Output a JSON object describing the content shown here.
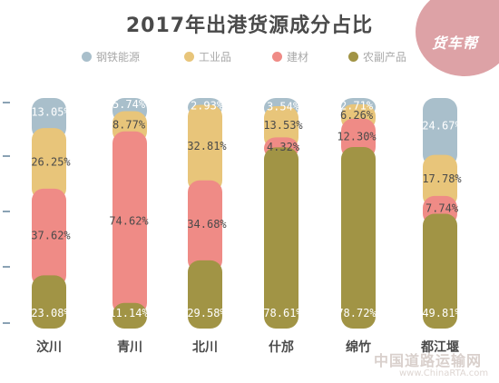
{
  "title": "2017年出港货源成分占比",
  "logo_text": "货车帮",
  "watermark": {
    "text": "中国道路运输网",
    "url": "www.ChinaRTA.com"
  },
  "colors": {
    "steel": "#a9bfcb",
    "industrial": "#e8c57a",
    "building": "#ef8b86",
    "agri": "#a19445",
    "label_light": "#ffffff",
    "label_dark": "#4a4a4a",
    "axis_tick": "#8aa2b4"
  },
  "chart_data": {
    "type": "bar",
    "stacked": true,
    "percent_unit": "%",
    "categories": [
      "汶川",
      "青川",
      "北川",
      "什邡",
      "绵竹",
      "都江堰"
    ],
    "series": [
      {
        "name": "钢铁能源",
        "color": "#a9bfcb",
        "values": [
          13.05,
          5.74,
          2.93,
          3.54,
          2.71,
          24.67
        ]
      },
      {
        "name": "工业品",
        "color": "#e8c57a",
        "values": [
          26.25,
          8.77,
          32.81,
          13.53,
          6.26,
          17.78
        ]
      },
      {
        "name": "建材",
        "color": "#ef8b86",
        "values": [
          37.62,
          74.62,
          34.68,
          4.32,
          12.3,
          7.74
        ]
      },
      {
        "name": "农副产品",
        "color": "#a19445",
        "values": [
          23.08,
          11.14,
          29.58,
          78.61,
          78.72,
          49.81
        ]
      }
    ],
    "value_labels": [
      [
        "13.05",
        "5.74",
        "2.93",
        "3.54",
        "2.71",
        "24.67"
      ],
      [
        "26.25",
        "8.77",
        "32.81",
        "13.53",
        "6.26",
        "17.78"
      ],
      [
        "37.62",
        "74.62",
        "34.68",
        "4.32",
        "12.30",
        "7.74"
      ],
      [
        "23.08",
        "11.14",
        "29.58",
        "78.61",
        "78.72",
        "49.81"
      ]
    ],
    "legend_position": "top",
    "grid": false
  }
}
